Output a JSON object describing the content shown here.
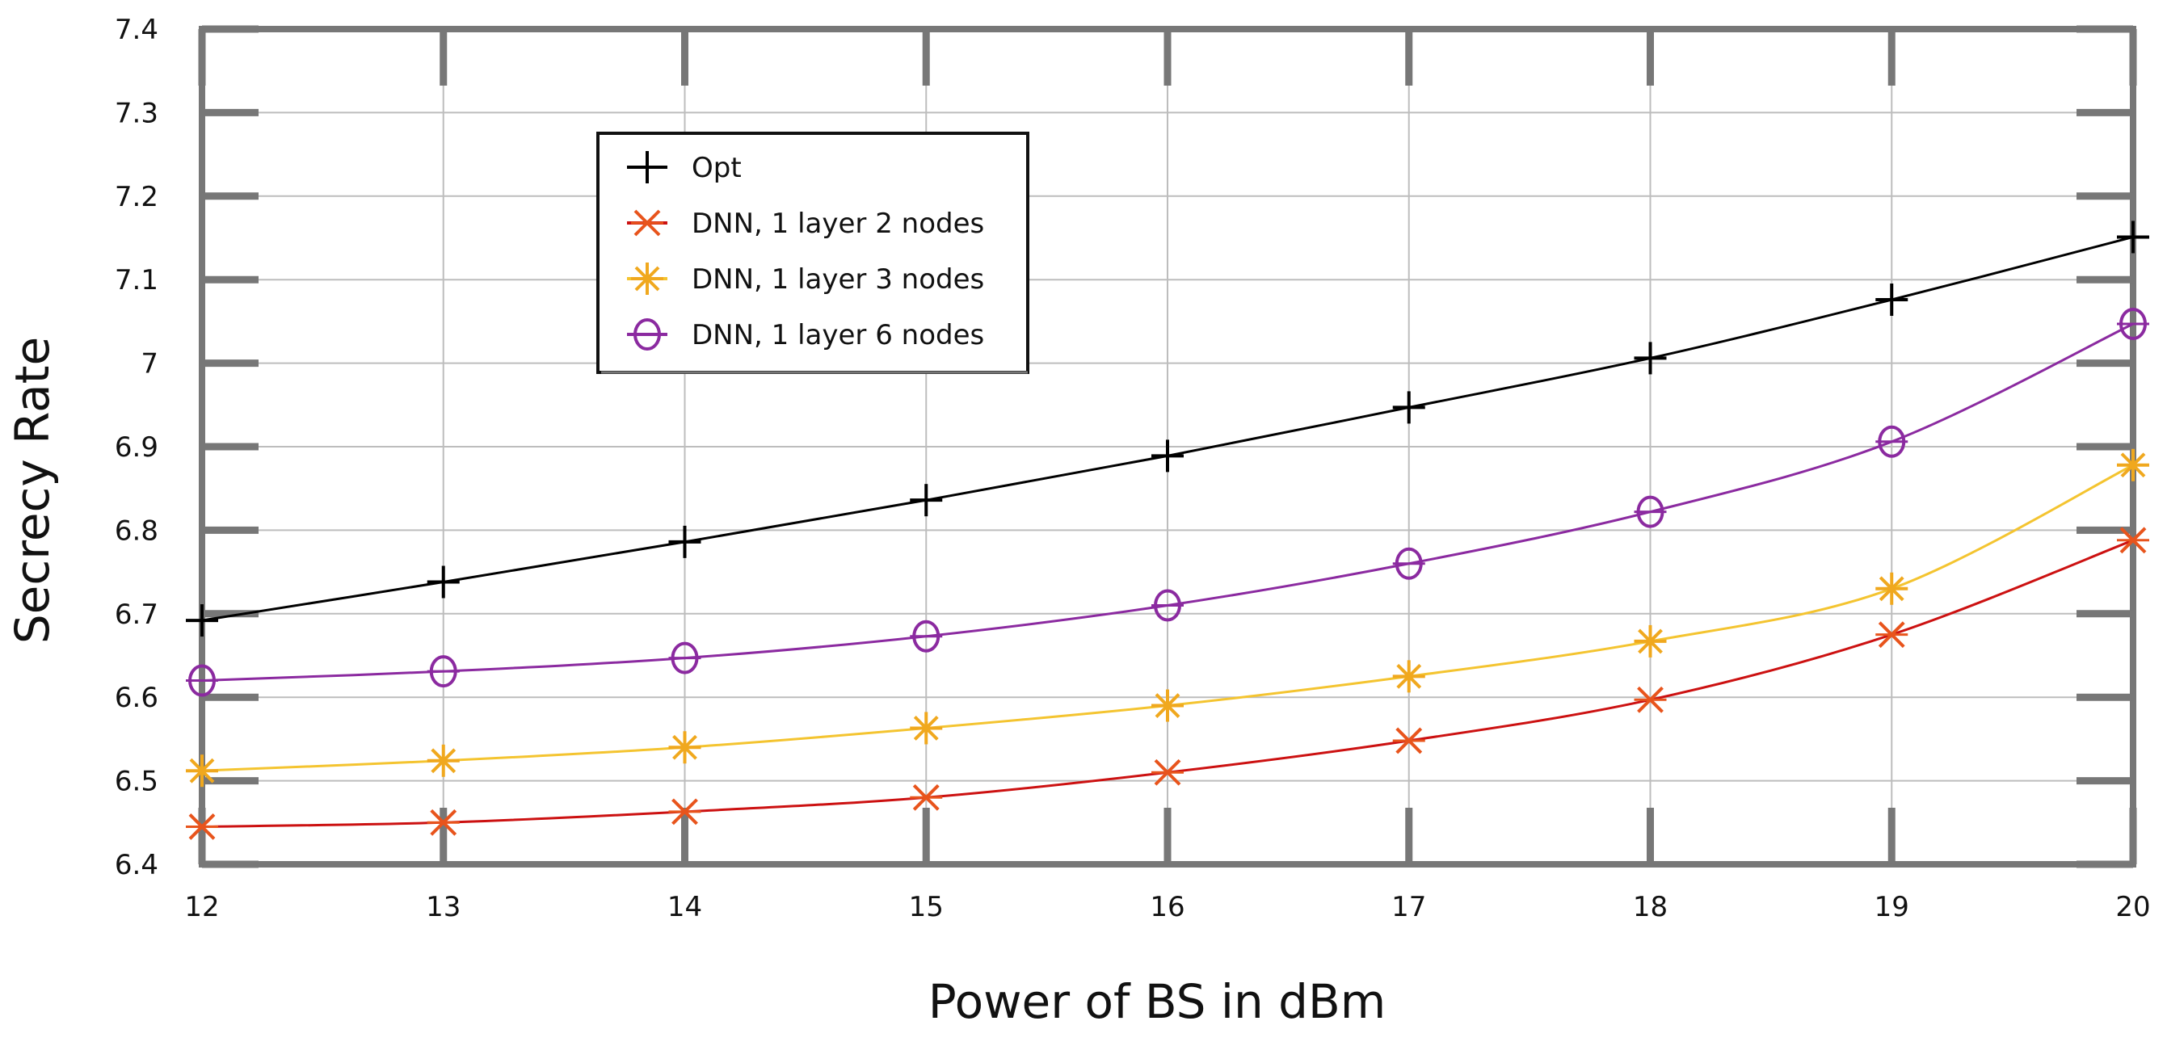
{
  "chart_data": {
    "type": "line",
    "title": "",
    "xlabel": "Power of BS in dBm",
    "ylabel": "Secrecy Rate",
    "xlim": [
      12,
      20
    ],
    "ylim": [
      6.4,
      7.4
    ],
    "grid": true,
    "legend_position": "top-left",
    "x": [
      12,
      13,
      14,
      15,
      16,
      17,
      18,
      19,
      20
    ],
    "x_tick_labels": [
      "12",
      "13",
      "14",
      "15",
      "16",
      "17",
      "18",
      "19",
      "20"
    ],
    "y_tick_values": [
      6.4,
      6.5,
      6.6,
      6.7,
      6.8,
      6.9,
      7.0,
      7.1,
      7.2,
      7.3,
      7.4
    ],
    "y_tick_labels": [
      "6.4",
      "6.5",
      "6.6",
      "6.7",
      "6.8",
      "6.9",
      "7",
      "7.1",
      "7.2",
      "7.3",
      "7.4"
    ],
    "series": [
      {
        "name": "Opt",
        "color": "#000000",
        "marker": "plus",
        "values": [
          6.692,
          6.738,
          6.786,
          6.836,
          6.889,
          6.947,
          7.006,
          7.076,
          7.151
        ]
      },
      {
        "name": "DNN, 1 layer 2 nodes",
        "color": "#e8541c",
        "line_color": "#cc1111",
        "marker": "x",
        "values": [
          6.445,
          6.45,
          6.463,
          6.48,
          6.51,
          6.548,
          6.597,
          6.675,
          6.788
        ]
      },
      {
        "name": "DNN, 1 layer 3 nodes",
        "color": "#f0a81e",
        "line_color": "#f4c430",
        "marker": "asterisk",
        "values": [
          6.512,
          6.524,
          6.54,
          6.563,
          6.59,
          6.625,
          6.667,
          6.73,
          6.878
        ]
      },
      {
        "name": "DNN, 1 layer 6 nodes",
        "color": "#8b2aa0",
        "marker": "circle",
        "values": [
          6.62,
          6.631,
          6.647,
          6.673,
          6.71,
          6.76,
          6.822,
          6.906,
          7.047
        ]
      }
    ]
  }
}
